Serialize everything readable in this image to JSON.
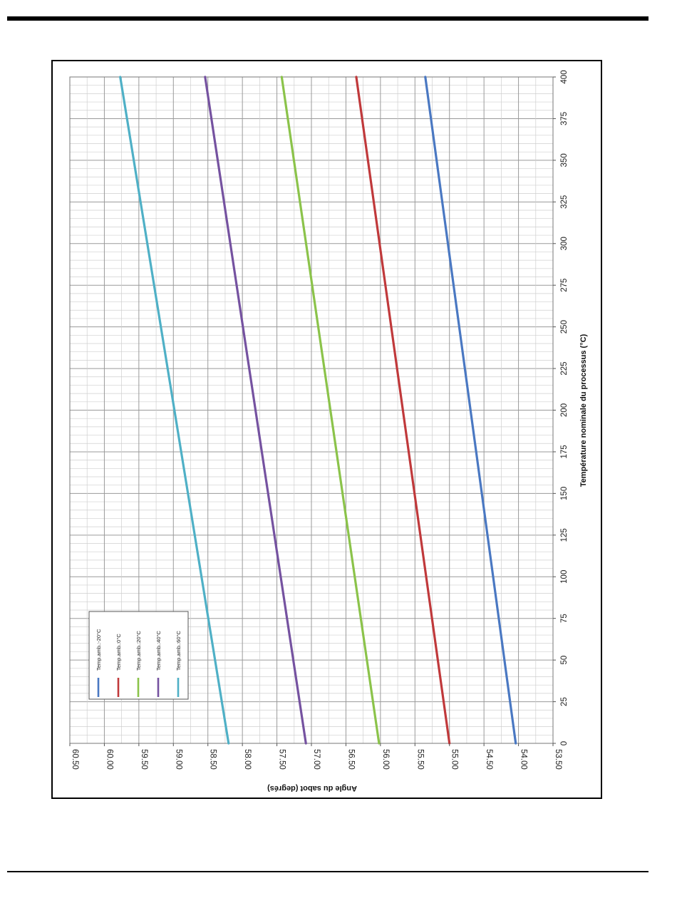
{
  "chart_data": {
    "type": "line",
    "orientation": "rotated-90-clockwise",
    "xlabel": "Température nominale du processus (°C)",
    "ylabel": "Angle du sabot (degrés)",
    "x_ticks": [
      "0",
      "25",
      "50",
      "75",
      "100",
      "125",
      "150",
      "175",
      "200",
      "225",
      "250",
      "275",
      "300",
      "325",
      "350",
      "375",
      "400"
    ],
    "y_ticks": [
      "53.50",
      "54.00",
      "54.50",
      "55.00",
      "55.50",
      "56.00",
      "56.50",
      "57.00",
      "57.50",
      "58.00",
      "58.50",
      "59.00",
      "59.50",
      "60.00",
      "60.50"
    ],
    "xlim": [
      0,
      400
    ],
    "ylim": [
      53.5,
      60.5
    ],
    "grid": true,
    "legend_position": "bottom-left",
    "x": [
      0,
      400
    ],
    "series": [
      {
        "name": "Temp.amb.:-20°C",
        "color": "#4a78c2",
        "values": [
          54.04,
          55.35
        ]
      },
      {
        "name": "Temp.amb.:0°C",
        "color": "#c0393b",
        "values": [
          55.0,
          56.35
        ]
      },
      {
        "name": "Temp.amb.:20°C",
        "color": "#8bc34a",
        "values": [
          56.02,
          57.43
        ]
      },
      {
        "name": "Temp.amb.:40°C",
        "color": "#7552a0",
        "values": [
          57.08,
          58.54
        ]
      },
      {
        "name": "Temp.amb.:60°C",
        "color": "#4fb0c6",
        "values": [
          58.2,
          59.77
        ]
      }
    ]
  }
}
